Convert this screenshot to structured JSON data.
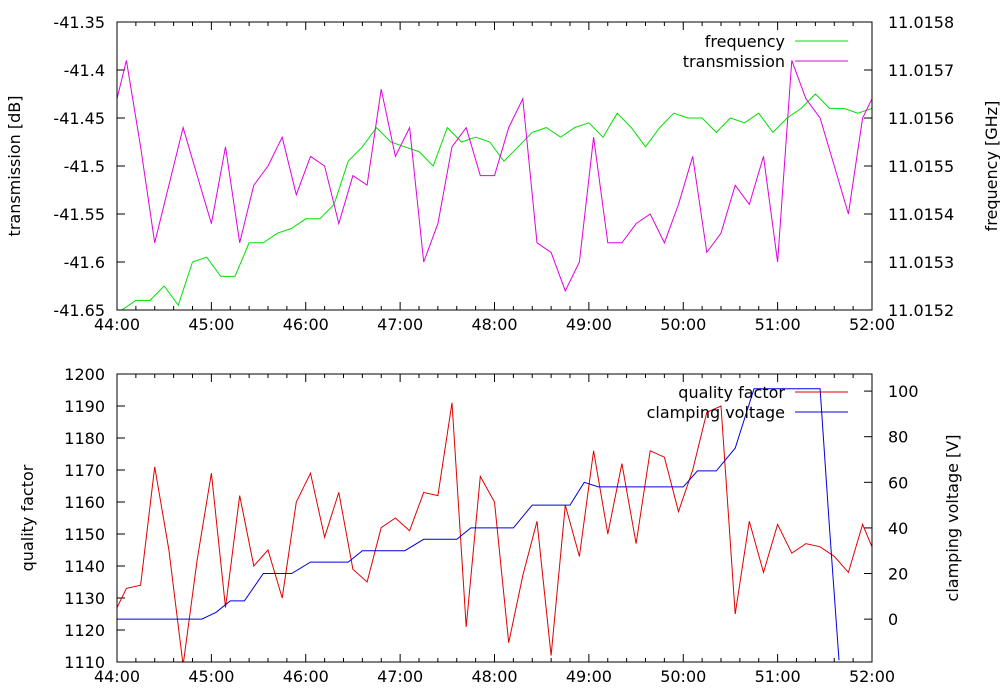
{
  "chart_data": [
    {
      "type": "line",
      "x_ticks": [
        "44:00",
        "45:00",
        "46:00",
        "47:00",
        "48:00",
        "49:00",
        "50:00",
        "51:00",
        "52:00"
      ],
      "xlim": [
        44,
        52
      ],
      "ylabel": "transmission [dB]",
      "ylim": [
        -41.65,
        -41.35
      ],
      "y_ticks": [
        "-41.35",
        "-41.4",
        "-41.45",
        "-41.5",
        "-41.55",
        "-41.6",
        "-41.65"
      ],
      "y2label": "frequency [GHz]",
      "y2lim": [
        11.0152,
        11.0158
      ],
      "y2_ticks": [
        "11.0158",
        "11.0157",
        "11.0156",
        "11.0155",
        "11.0154",
        "11.0153",
        "11.0152"
      ],
      "legend_position": "top-right",
      "grid": false,
      "series": [
        {
          "name": "frequency",
          "axis": "right",
          "color": "#00e000",
          "x": [
            44.05,
            44.2,
            44.35,
            44.5,
            44.65,
            44.8,
            44.95,
            45.1,
            45.25,
            45.4,
            45.55,
            45.7,
            45.85,
            46.0,
            46.15,
            46.3,
            46.45,
            46.6,
            46.75,
            46.9,
            47.05,
            47.2,
            47.35,
            47.5,
            47.65,
            47.8,
            47.95,
            48.1,
            48.25,
            48.4,
            48.55,
            48.7,
            48.85,
            49.0,
            49.15,
            49.3,
            49.45,
            49.6,
            49.75,
            49.9,
            50.05,
            50.2,
            50.35,
            50.5,
            50.65,
            50.8,
            50.95,
            51.1,
            51.25,
            51.4,
            51.55,
            51.7,
            51.85,
            52.0
          ],
          "y": [
            11.0152,
            11.01522,
            11.01522,
            11.01525,
            11.01521,
            11.0153,
            11.01531,
            11.01527,
            11.01527,
            11.01534,
            11.01534,
            11.01536,
            11.01537,
            11.01539,
            11.01539,
            11.01542,
            11.01551,
            11.01554,
            11.01558,
            11.01555,
            11.01554,
            11.01553,
            11.0155,
            11.01558,
            11.01555,
            11.01556,
            11.01555,
            11.01551,
            11.01554,
            11.01557,
            11.01558,
            11.01556,
            11.01558,
            11.01559,
            11.01556,
            11.01561,
            11.01558,
            11.01554,
            11.01558,
            11.01561,
            11.0156,
            11.0156,
            11.01557,
            11.0156,
            11.01559,
            11.01561,
            11.01557,
            11.0156,
            11.01562,
            11.01565,
            11.01562,
            11.01562,
            11.01561,
            11.01562
          ]
        },
        {
          "name": "transmission",
          "axis": "left",
          "color": "#e000e0",
          "x": [
            44.0,
            44.1,
            44.25,
            44.4,
            44.55,
            44.7,
            44.85,
            45.0,
            45.15,
            45.3,
            45.45,
            45.6,
            45.75,
            45.9,
            46.05,
            46.2,
            46.35,
            46.5,
            46.65,
            46.8,
            46.95,
            47.1,
            47.25,
            47.4,
            47.55,
            47.7,
            47.85,
            48.0,
            48.15,
            48.3,
            48.45,
            48.6,
            48.75,
            48.9,
            49.05,
            49.2,
            49.35,
            49.5,
            49.65,
            49.8,
            49.95,
            50.1,
            50.25,
            50.4,
            50.55,
            50.7,
            50.85,
            51.0,
            51.15,
            51.3,
            51.45,
            51.6,
            51.75,
            51.9,
            52.0
          ],
          "y": [
            -41.43,
            -41.39,
            -41.48,
            -41.58,
            -41.52,
            -41.46,
            -41.51,
            -41.56,
            -41.48,
            -41.58,
            -41.52,
            -41.5,
            -41.47,
            -41.53,
            -41.49,
            -41.5,
            -41.56,
            -41.51,
            -41.52,
            -41.42,
            -41.49,
            -41.46,
            -41.6,
            -41.56,
            -41.48,
            -41.46,
            -41.51,
            -41.51,
            -41.46,
            -41.43,
            -41.58,
            -41.59,
            -41.63,
            -41.6,
            -41.47,
            -41.58,
            -41.58,
            -41.56,
            -41.55,
            -41.58,
            -41.54,
            -41.49,
            -41.59,
            -41.57,
            -41.52,
            -41.54,
            -41.49,
            -41.6,
            -41.39,
            -41.43,
            -41.45,
            -41.5,
            -41.55,
            -41.45,
            -41.43
          ]
        }
      ]
    },
    {
      "type": "line",
      "x_ticks": [
        "44:00",
        "45:00",
        "46:00",
        "47:00",
        "48:00",
        "49:00",
        "50:00",
        "51:00",
        "52:00"
      ],
      "xlim": [
        44,
        52
      ],
      "ylabel": "quality factor",
      "ylim": [
        1110,
        1200
      ],
      "y_ticks": [
        "1200",
        "1190",
        "1180",
        "1170",
        "1160",
        "1150",
        "1140",
        "1130",
        "1120",
        "1110"
      ],
      "y2label": "clamping voltage [V]",
      "y2lim": [
        -18.8,
        107.5
      ],
      "y2_ticks": [
        "100",
        "80",
        "60",
        "40",
        "20",
        "0"
      ],
      "y2_tick_values": [
        100,
        80,
        60,
        40,
        20,
        0
      ],
      "legend_position": "top-right",
      "grid": false,
      "series": [
        {
          "name": "quality factor",
          "axis": "left",
          "color": "#e00000",
          "x": [
            44.0,
            44.1,
            44.25,
            44.4,
            44.55,
            44.7,
            44.85,
            45.0,
            45.15,
            45.3,
            45.45,
            45.6,
            45.75,
            45.9,
            46.05,
            46.2,
            46.35,
            46.5,
            46.65,
            46.8,
            46.95,
            47.1,
            47.25,
            47.4,
            47.55,
            47.7,
            47.85,
            48.0,
            48.15,
            48.3,
            48.45,
            48.6,
            48.75,
            48.9,
            49.05,
            49.2,
            49.35,
            49.5,
            49.65,
            49.8,
            49.95,
            50.1,
            50.25,
            50.4,
            50.55,
            50.7,
            50.85,
            51.0,
            51.15,
            51.3,
            51.45,
            51.6,
            51.75,
            51.9,
            52.0
          ],
          "y": [
            1127,
            1133,
            1134,
            1171,
            1145,
            1109,
            1142,
            1169,
            1127,
            1162,
            1140,
            1145,
            1130,
            1160,
            1169,
            1149,
            1163,
            1139,
            1135,
            1152,
            1155,
            1151,
            1163,
            1162,
            1191,
            1121,
            1168,
            1160,
            1116,
            1137,
            1154,
            1112,
            1159,
            1143,
            1176,
            1150,
            1172,
            1147,
            1176,
            1174,
            1157,
            1170,
            1188,
            1190,
            1125,
            1154,
            1138,
            1153,
            1144,
            1147,
            1146,
            1143,
            1138,
            1153,
            1146
          ]
        },
        {
          "name": "clamping voltage",
          "axis": "right",
          "color": "#0000e0",
          "x": [
            44.0,
            44.9,
            45.05,
            45.2,
            45.35,
            45.55,
            45.85,
            46.05,
            46.45,
            46.6,
            47.05,
            47.25,
            47.6,
            47.75,
            48.2,
            48.4,
            48.8,
            48.95,
            49.1,
            50.0,
            50.15,
            50.35,
            50.55,
            50.75,
            51.45,
            51.55,
            51.65
          ],
          "y": [
            0,
            0,
            3,
            8,
            8,
            20,
            20,
            25,
            25,
            30,
            30,
            35,
            35,
            40,
            40,
            50,
            50,
            60,
            58,
            58,
            65,
            65,
            75,
            101,
            101,
            40,
            -18
          ]
        }
      ]
    }
  ]
}
